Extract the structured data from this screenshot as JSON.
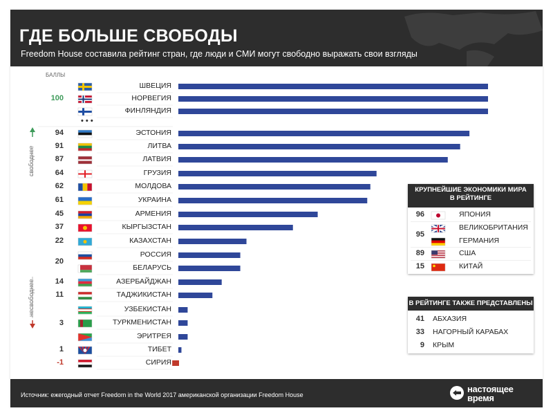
{
  "header": {
    "title": "ГДЕ БОЛЬШЕ СВОБОДЫ",
    "subtitle": "Freedom House составила рейтинг стран, где люди и СМИ могут свободно выражать свои взгляды"
  },
  "scores_label": "БАЛЛЫ",
  "freer_label": "свободнее",
  "less_free_label": "несвободнее",
  "colors": {
    "bar": "#2f4799",
    "header_bg": "#2d2d2d",
    "up_arrow": "#3e9b5a",
    "down_arrow": "#c0392b",
    "score_top": "#3e9b5a",
    "score_negative": "#c0392b"
  },
  "chart_data": {
    "type": "bar",
    "orientation": "horizontal",
    "categories": [
      "ШВЕЦИЯ",
      "НОРВЕГИЯ",
      "ФИНЛЯНДИЯ",
      "ЭСТОНИЯ",
      "ЛИТВА",
      "ЛАТВИЯ",
      "ГРУЗИЯ",
      "МОЛДОВА",
      "УКРАИНА",
      "АРМЕНИЯ",
      "КЫРГЫЗСТАН",
      "КАЗАХСТАН",
      "РОССИЯ",
      "БЕЛАРУСЬ",
      "АЗЕРБАЙДЖАН",
      "ТАДЖИКИСТАН",
      "УЗБЕКИСТАН",
      "ТУРКМЕНИСТАН",
      "ЭРИТРЕЯ",
      "ТИБЕТ",
      "СИРИЯ"
    ],
    "values": [
      100,
      100,
      100,
      94,
      91,
      87,
      64,
      62,
      61,
      45,
      37,
      22,
      20,
      20,
      14,
      11,
      3,
      3,
      3,
      1,
      -1
    ],
    "score_labels": [
      {
        "text": "100",
        "first": 0,
        "last": 2
      },
      {
        "text": "94",
        "first": 3,
        "last": 3
      },
      {
        "text": "91",
        "first": 4,
        "last": 4
      },
      {
        "text": "87",
        "first": 5,
        "last": 5
      },
      {
        "text": "64",
        "first": 6,
        "last": 6
      },
      {
        "text": "62",
        "first": 7,
        "last": 7
      },
      {
        "text": "61",
        "first": 8,
        "last": 8
      },
      {
        "text": "45",
        "first": 9,
        "last": 9
      },
      {
        "text": "37",
        "first": 10,
        "last": 10
      },
      {
        "text": "22",
        "first": 11,
        "last": 11
      },
      {
        "text": "20",
        "first": 12,
        "last": 13
      },
      {
        "text": "14",
        "first": 14,
        "last": 14
      },
      {
        "text": "11",
        "first": 15,
        "last": 15
      },
      {
        "text": "3",
        "first": 16,
        "last": 18
      },
      {
        "text": "1",
        "first": 19,
        "last": 19
      },
      {
        "text": "-1",
        "first": 20,
        "last": 20
      }
    ],
    "flag_icons": [
      "flag-sweden-icon",
      "flag-norway-icon",
      "flag-finland-icon",
      "flag-estonia-icon",
      "flag-lithuania-icon",
      "flag-latvia-icon",
      "flag-georgia-icon",
      "flag-moldova-icon",
      "flag-ukraine-icon",
      "flag-armenia-icon",
      "flag-kyrgyzstan-icon",
      "flag-kazakhstan-icon",
      "flag-russia-icon",
      "flag-belarus-icon",
      "flag-azerbaijan-icon",
      "flag-tajikistan-icon",
      "flag-uzbekistan-icon",
      "flag-turkmenistan-icon",
      "flag-eritrea-icon",
      "flag-tibet-icon",
      "flag-syria-icon"
    ],
    "xlim": [
      0,
      100
    ],
    "grid": false,
    "legend": "none"
  },
  "economies_box": {
    "title_line1": "КРУПНЕЙШИЕ ЭКОНОМИКИ МИРА",
    "title_line2": "В РЕЙТИНГЕ",
    "rows": [
      {
        "score": "96",
        "name": "ЯПОНИЯ",
        "flag": "flag-japan-icon"
      },
      {
        "score": "95",
        "name": "ВЕЛИКОБРИТАНИЯ",
        "flag": "flag-uk-icon"
      },
      {
        "score": "",
        "name": "ГЕРМАНИЯ",
        "flag": "flag-germany-icon"
      },
      {
        "score": "89",
        "name": "США",
        "flag": "flag-usa-icon"
      },
      {
        "score": "15",
        "name": "КИТАЙ",
        "flag": "flag-china-icon"
      }
    ]
  },
  "also_box": {
    "title": "В РЕЙТИНГЕ ТАКЖЕ ПРЕДСТАВЛЕНЫ",
    "rows": [
      {
        "score": "41",
        "name": "АБХАЗИЯ"
      },
      {
        "score": "33",
        "name": "НАГОРНЫЙ КАРАБАХ"
      },
      {
        "score": "9",
        "name": "КРЫМ"
      }
    ]
  },
  "footer": {
    "source": "Источник: ежегодный отчет Freedom in the World 2017 американской организации Freedom House",
    "logo_line1": "настоящее",
    "logo_line2": "время"
  }
}
